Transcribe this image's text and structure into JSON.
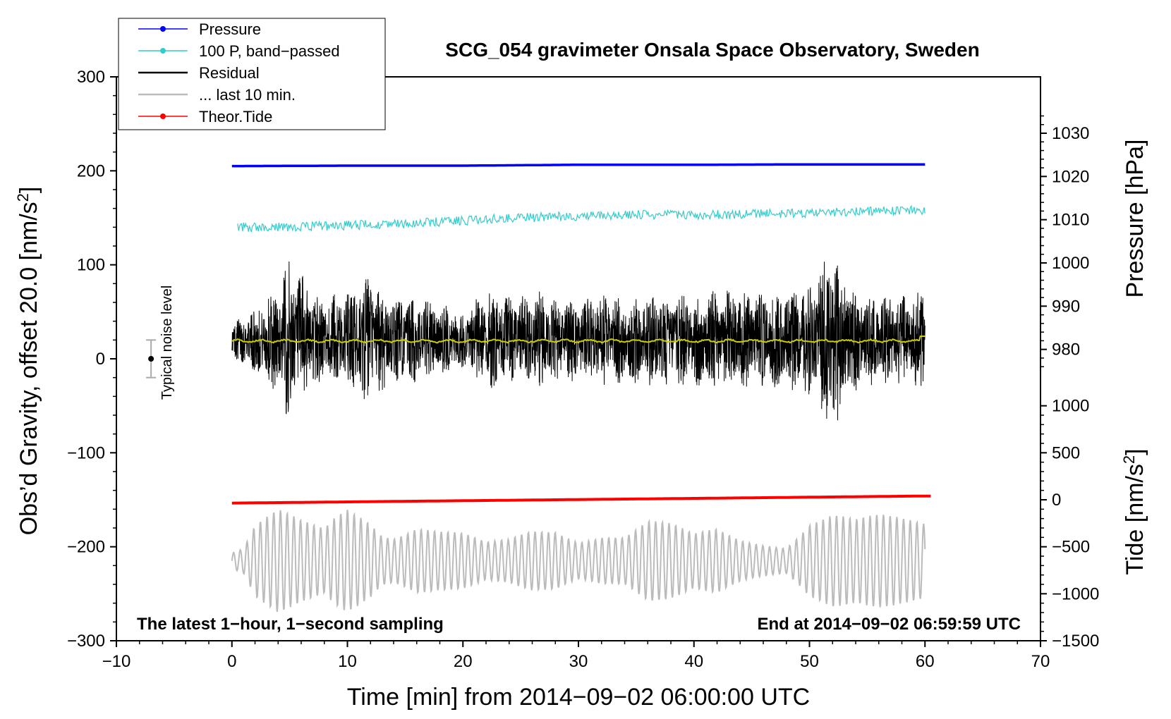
{
  "chart_data": {
    "type": "line",
    "title": "SCG_054 gravimeter Onsala Space Observatory, Sweden",
    "xlabel": "Time [min] from 2014−09−02 06:00:00 UTC",
    "ylabel_left": "Obs’d Gravity, offset 20.0 [nm/s",
    "ylabel_left_sup": "2",
    "ylabel_left_end": "]",
    "ylabel_right_pressure": "Pressure [hPa]",
    "ylabel_right_tide": "Tide [nm/s",
    "ylabel_right_tide_sup": "2",
    "ylabel_right_tide_end": "]",
    "xlim": [
      -10,
      70
    ],
    "ylim_left": [
      -300,
      300
    ],
    "x_ticks": [
      {
        "value": -10,
        "label": "−10"
      },
      {
        "value": 0,
        "label": "0"
      },
      {
        "value": 10,
        "label": "10"
      },
      {
        "value": 20,
        "label": "20"
      },
      {
        "value": 30,
        "label": "30"
      },
      {
        "value": 40,
        "label": "40"
      },
      {
        "value": 50,
        "label": "50"
      },
      {
        "value": 60,
        "label": "60"
      },
      {
        "value": 70,
        "label": "70"
      }
    ],
    "y_ticks_left": [
      {
        "value": 300,
        "label": "300"
      },
      {
        "value": 200,
        "label": "200"
      },
      {
        "value": 100,
        "label": "100"
      },
      {
        "value": 0,
        "label": "0"
      },
      {
        "value": -100,
        "label": "−100"
      },
      {
        "value": -200,
        "label": "−200"
      },
      {
        "value": -300,
        "label": "−300"
      }
    ],
    "pressure_axis": {
      "left_at_1030": 240,
      "left_per_hpa": 4.6,
      "ticks": [
        {
          "value": 1030,
          "label": "1030"
        },
        {
          "value": 1020,
          "label": "1020"
        },
        {
          "value": 1010,
          "label": "1010"
        },
        {
          "value": 1000,
          "label": "1000"
        },
        {
          "value": 990,
          "label": "990"
        },
        {
          "value": 980,
          "label": "980"
        }
      ]
    },
    "tide_axis": {
      "left_at_0": -150,
      "left_per_nms2": 0.1,
      "ticks": [
        {
          "value": 1000,
          "label": "1000"
        },
        {
          "value": 500,
          "label": "500"
        },
        {
          "value": 0,
          "label": "0"
        },
        {
          "value": -500,
          "label": "−500"
        },
        {
          "value": -1000,
          "label": "−1000"
        },
        {
          "value": -1500,
          "label": "−1500"
        }
      ]
    },
    "series": [
      {
        "name": "Pressure",
        "color": "#0000ff",
        "unit": "hPa",
        "x": [
          0,
          10,
          20,
          30,
          40,
          50,
          60
        ],
        "values": [
          1022.4,
          1022.5,
          1022.5,
          1022.7,
          1022.7,
          1022.8,
          1022.8
        ]
      },
      {
        "name": "100 P, band−passed",
        "color": "#33cccc",
        "unit": "nm/s2",
        "x": [
          0,
          5,
          10,
          15,
          20,
          25,
          30,
          35,
          40,
          45,
          50,
          55,
          60
        ],
        "values": [
          140,
          140,
          142,
          144,
          147,
          150,
          152,
          153,
          153,
          154,
          155,
          157,
          158
        ],
        "noise": 5
      },
      {
        "name": "Residual",
        "color": "#000000",
        "unit": "nm/s2",
        "x": [
          0,
          2,
          4,
          5,
          6,
          8,
          10,
          12,
          14,
          16,
          18,
          20,
          22,
          24,
          26,
          28,
          30,
          32,
          34,
          36,
          38,
          40,
          42,
          44,
          46,
          48,
          50,
          51,
          52,
          53,
          54,
          56,
          58,
          60
        ],
        "amplitude": [
          20,
          35,
          60,
          90,
          70,
          45,
          55,
          70,
          45,
          50,
          40,
          30,
          55,
          50,
          55,
          45,
          45,
          50,
          45,
          50,
          50,
          50,
          55,
          55,
          50,
          55,
          60,
          80,
          105,
          80,
          55,
          45,
          55,
          55
        ],
        "ylim": [
          -90,
          140
        ]
      },
      {
        "name": "... last 10 min.",
        "color": "#bbbbbb",
        "unit": "nm/s2",
        "center": -215,
        "x": [
          0,
          1,
          2,
          4,
          6,
          8,
          9,
          10,
          11,
          12,
          13,
          14,
          16,
          18,
          20,
          22,
          24,
          26,
          28,
          30,
          32,
          34,
          36,
          38,
          40,
          42,
          44,
          46,
          48,
          50,
          52,
          54,
          56,
          58,
          60
        ],
        "amplitude": [
          10,
          15,
          40,
          55,
          45,
          40,
          60,
          75,
          70,
          60,
          40,
          35,
          45,
          35,
          30,
          20,
          25,
          40,
          45,
          30,
          35,
          30,
          45,
          40,
          30,
          40,
          30,
          25,
          20,
          50,
          55,
          45,
          50,
          50,
          50
        ],
        "ylim": [
          -295,
          -132
        ]
      },
      {
        "name": "Theor.Tide",
        "color": "#ff0000",
        "unit": "nm/s2 (left scale)",
        "x": [
          0,
          60
        ],
        "values": [
          -153.5,
          -146
        ]
      }
    ],
    "noise_bar": {
      "x": -7,
      "y": 0,
      "half_range": 20,
      "label": "Typical noise level"
    },
    "annotations": {
      "bottom_left": "The latest 1−hour, 1−second sampling",
      "bottom_right": "End at 2014−09−02 06:59:59 UTC"
    },
    "legend_position": "top-left"
  }
}
